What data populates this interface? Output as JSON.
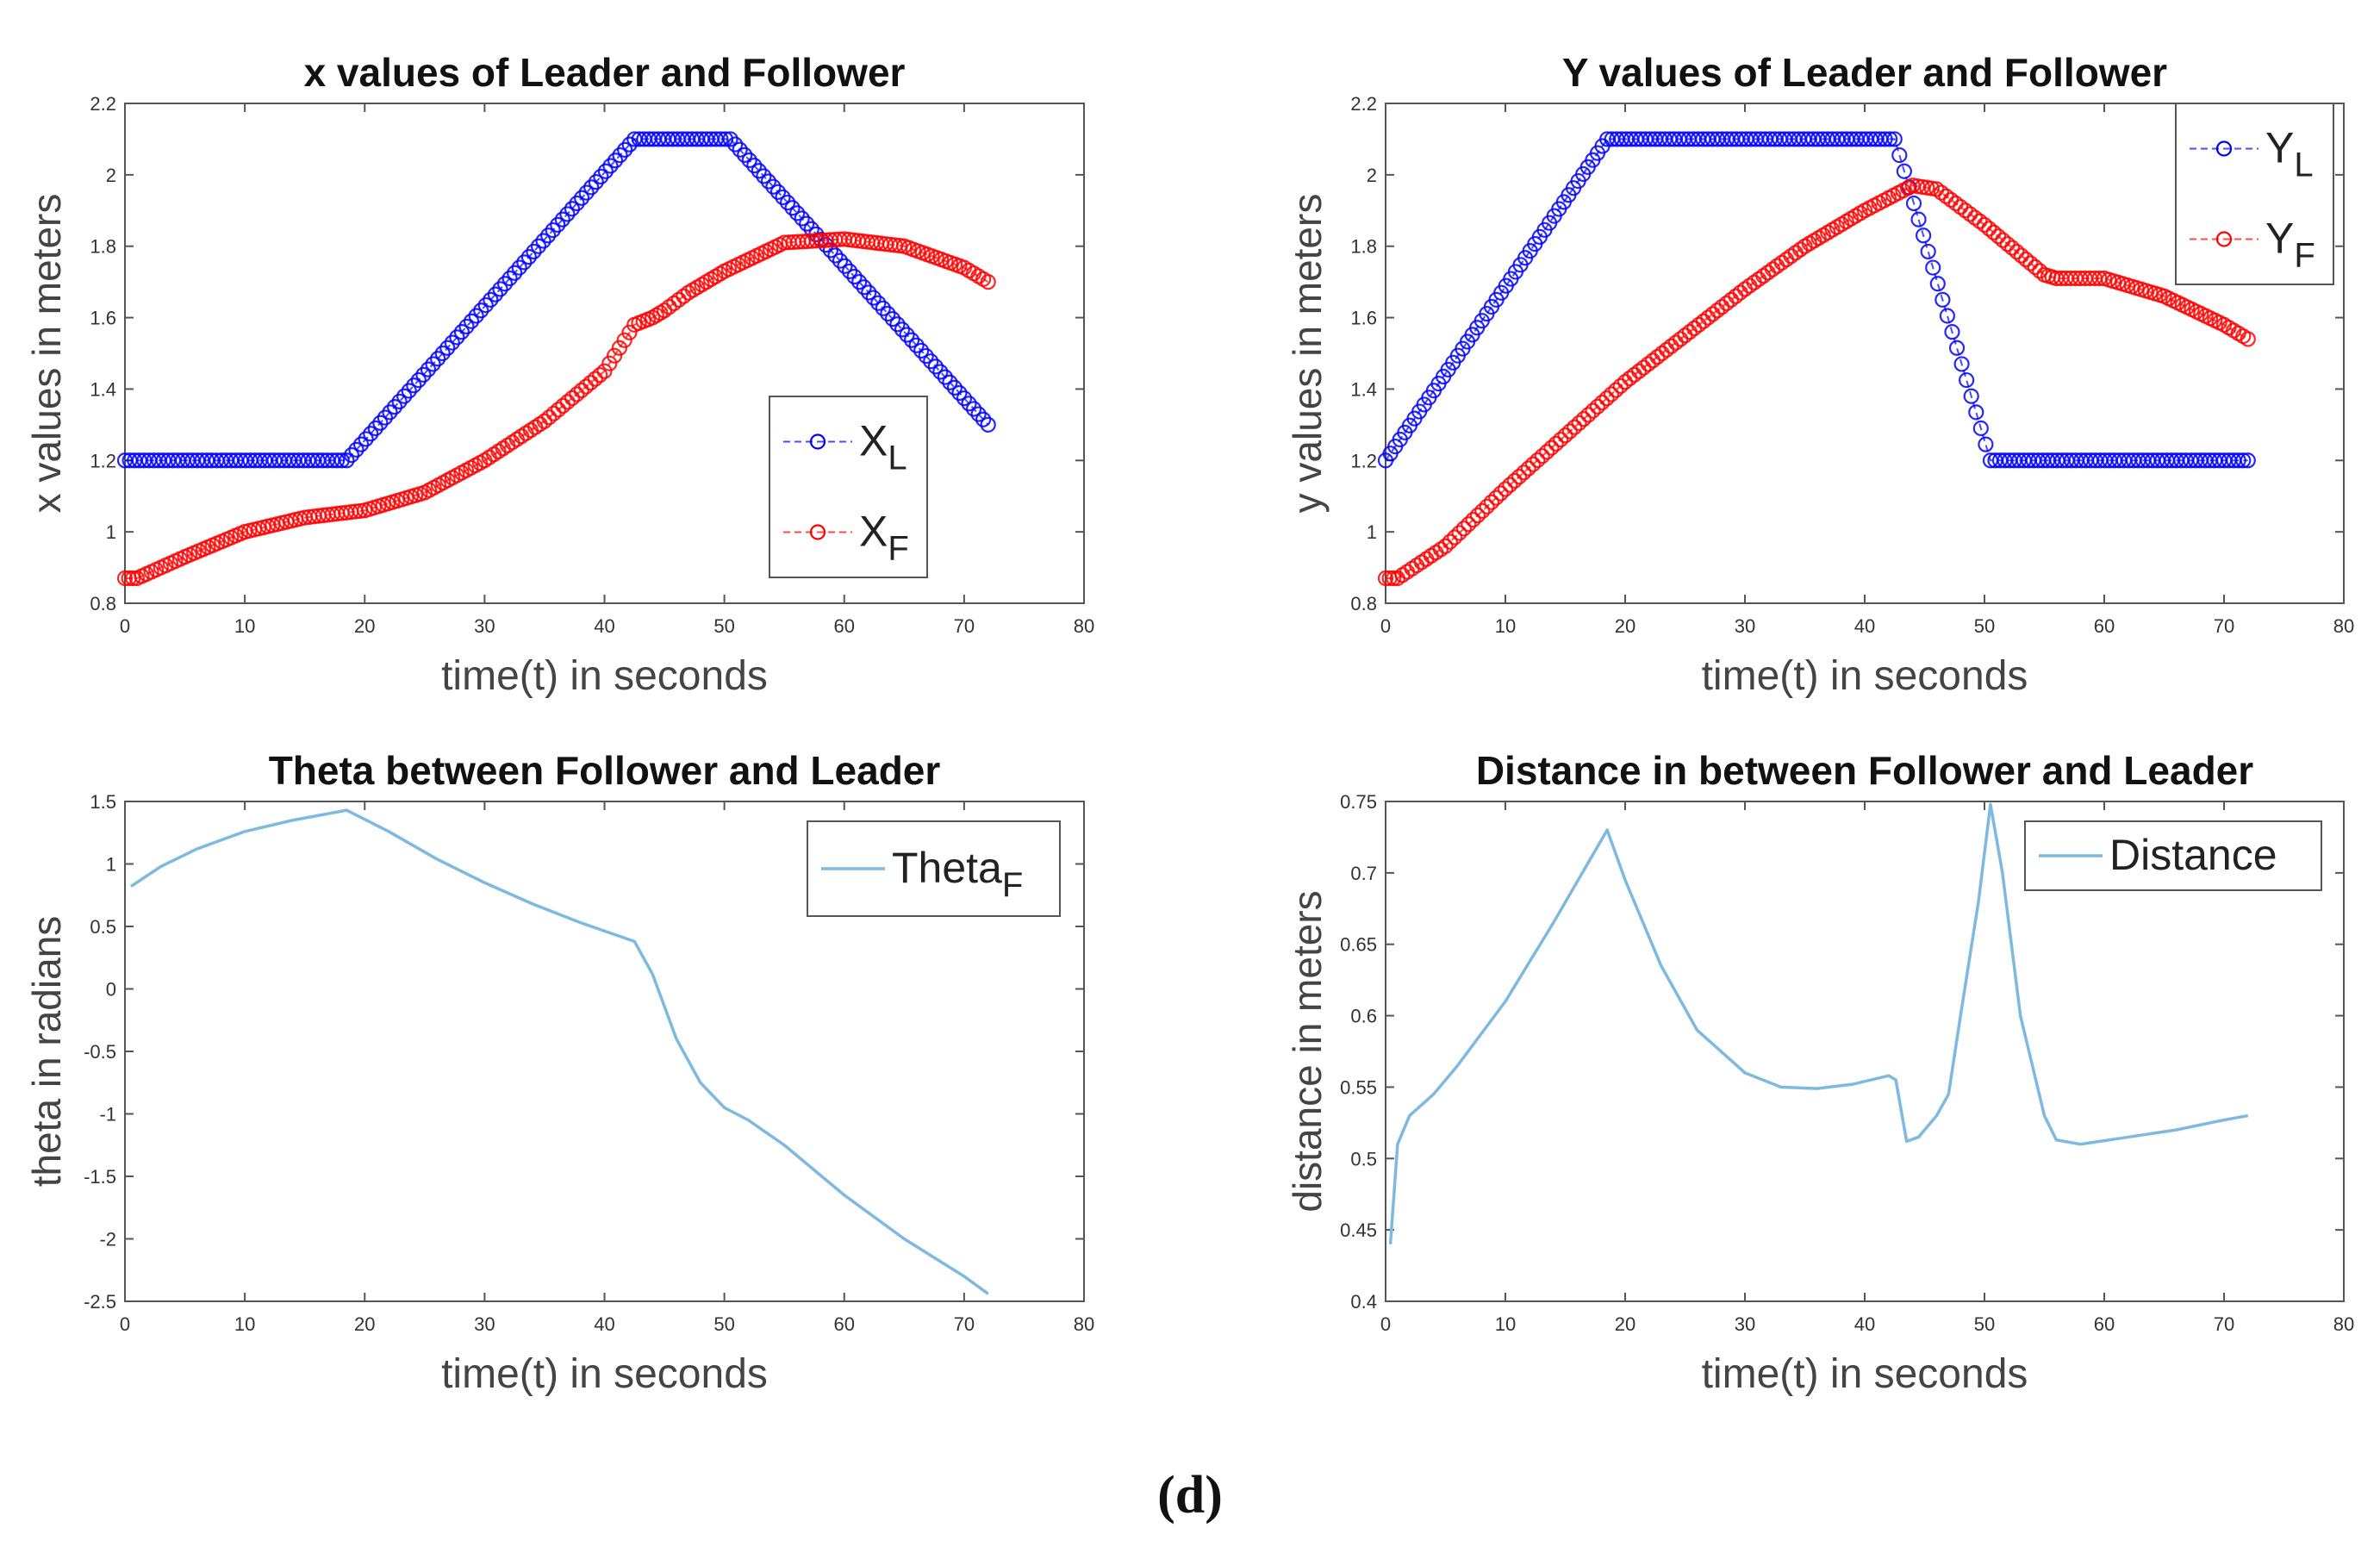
{
  "caption": "(d)",
  "chart_data": [
    {
      "id": "x",
      "type": "line",
      "title": "x values of Leader and Follower",
      "xlabel": "time(t) in seconds",
      "ylabel": "x values in meters",
      "xlim": [
        0,
        80
      ],
      "ylim": [
        0.8,
        2.2
      ],
      "xticks": [
        0,
        10,
        20,
        30,
        40,
        50,
        60,
        70,
        80
      ],
      "yticks": [
        0.8,
        1,
        1.2,
        1.4,
        1.6,
        1.8,
        2,
        2.2
      ],
      "ytick_labels": [
        "0.8",
        "1",
        "1.2",
        "1.4",
        "1.6",
        "1.8",
        "2",
        "2.2"
      ],
      "legend_position": "lower-right",
      "series": [
        {
          "name": "X",
          "subscript": "L",
          "color": "#0000ff",
          "style": "dashed-circle",
          "points": [
            [
              0,
              1.2
            ],
            [
              18.5,
              1.2
            ],
            [
              42.5,
              2.1
            ],
            [
              50.5,
              2.1
            ],
            [
              72,
              1.3
            ]
          ]
        },
        {
          "name": "X",
          "subscript": "F",
          "color": "#ff0000",
          "style": "dashed-circle",
          "points": [
            [
              0,
              0.87
            ],
            [
              1,
              0.87
            ],
            [
              5,
              0.93
            ],
            [
              10,
              1.0
            ],
            [
              15,
              1.04
            ],
            [
              20,
              1.06
            ],
            [
              25,
              1.11
            ],
            [
              30,
              1.2
            ],
            [
              35,
              1.31
            ],
            [
              40,
              1.45
            ],
            [
              42.5,
              1.58
            ],
            [
              44,
              1.6
            ],
            [
              45,
              1.62
            ],
            [
              47,
              1.67
            ],
            [
              50,
              1.73
            ],
            [
              55,
              1.81
            ],
            [
              60,
              1.82
            ],
            [
              65,
              1.8
            ],
            [
              70,
              1.74
            ],
            [
              72,
              1.7
            ]
          ]
        }
      ]
    },
    {
      "id": "y",
      "type": "line",
      "title": "Y values of Leader and Follower",
      "xlabel": "time(t) in seconds",
      "ylabel": "y values in meters",
      "xlim": [
        0,
        80
      ],
      "ylim": [
        0.8,
        2.2
      ],
      "xticks": [
        0,
        10,
        20,
        30,
        40,
        50,
        60,
        70,
        80
      ],
      "yticks": [
        0.8,
        1,
        1.2,
        1.4,
        1.6,
        1.8,
        2,
        2.2
      ],
      "ytick_labels": [
        "0.8",
        "1",
        "1.2",
        "1.4",
        "1.6",
        "1.8",
        "2",
        "2.2"
      ],
      "legend_position": "top-right",
      "series": [
        {
          "name": "Y",
          "subscript": "L",
          "color": "#0000ff",
          "style": "dashed-circle",
          "points": [
            [
              0,
              1.2
            ],
            [
              18.5,
              2.1
            ],
            [
              42.5,
              2.1
            ],
            [
              50.5,
              1.2
            ],
            [
              72,
              1.2
            ]
          ]
        },
        {
          "name": "Y",
          "subscript": "F",
          "color": "#ff0000",
          "style": "dashed-circle",
          "points": [
            [
              0,
              0.87
            ],
            [
              1,
              0.87
            ],
            [
              5,
              0.96
            ],
            [
              10,
              1.12
            ],
            [
              15,
              1.27
            ],
            [
              20,
              1.42
            ],
            [
              25,
              1.55
            ],
            [
              30,
              1.68
            ],
            [
              35,
              1.8
            ],
            [
              40,
              1.9
            ],
            [
              44,
              1.97
            ],
            [
              46,
              1.96
            ],
            [
              50,
              1.86
            ],
            [
              55,
              1.72
            ],
            [
              56,
              1.71
            ],
            [
              60,
              1.71
            ],
            [
              65,
              1.66
            ],
            [
              70,
              1.58
            ],
            [
              72,
              1.54
            ]
          ]
        }
      ]
    },
    {
      "id": "theta",
      "type": "line",
      "title": "Theta between Follower and Leader",
      "xlabel": "time(t) in seconds",
      "ylabel": "theta in radians",
      "xlim": [
        0,
        80
      ],
      "ylim": [
        -2.5,
        1.5
      ],
      "xticks": [
        0,
        10,
        20,
        30,
        40,
        50,
        60,
        70,
        80
      ],
      "yticks": [
        -2.5,
        -2,
        -1.5,
        -1,
        -0.5,
        0,
        0.5,
        1,
        1.5
      ],
      "ytick_labels": [
        "-2.5",
        "-2",
        "-1.5",
        "-1",
        "-0.5",
        "0",
        "0.5",
        "1",
        "1.5"
      ],
      "legend_position": "top-right",
      "series": [
        {
          "name": "Theta",
          "subscript": "F",
          "color": "#7db9e0",
          "style": "solid",
          "points": [
            [
              0.5,
              0.82
            ],
            [
              3,
              0.98
            ],
            [
              6,
              1.12
            ],
            [
              10,
              1.26
            ],
            [
              14,
              1.35
            ],
            [
              18.5,
              1.43
            ],
            [
              22,
              1.26
            ],
            [
              26,
              1.04
            ],
            [
              30,
              0.85
            ],
            [
              34,
              0.68
            ],
            [
              38,
              0.53
            ],
            [
              42.5,
              0.38
            ],
            [
              44,
              0.12
            ],
            [
              46,
              -0.4
            ],
            [
              48,
              -0.75
            ],
            [
              50,
              -0.95
            ],
            [
              52,
              -1.05
            ],
            [
              55,
              -1.25
            ],
            [
              60,
              -1.65
            ],
            [
              65,
              -2.0
            ],
            [
              70,
              -2.3
            ],
            [
              72,
              -2.44
            ]
          ]
        }
      ]
    },
    {
      "id": "dist",
      "type": "line",
      "title": "Distance in between Follower and Leader",
      "xlabel": "time(t) in seconds",
      "ylabel": "distance in meters",
      "xlim": [
        0,
        80
      ],
      "ylim": [
        0.4,
        0.75
      ],
      "xticks": [
        0,
        10,
        20,
        30,
        40,
        50,
        60,
        70,
        80
      ],
      "yticks": [
        0.4,
        0.45,
        0.5,
        0.55,
        0.6,
        0.65,
        0.7,
        0.75
      ],
      "ytick_labels": [
        "0.4",
        "0.45",
        "0.5",
        "0.55",
        "0.6",
        "0.65",
        "0.7",
        "0.75"
      ],
      "legend_position": "top-right",
      "series": [
        {
          "name": "Distance",
          "subscript": "",
          "color": "#7db9e0",
          "style": "solid",
          "points": [
            [
              0.4,
              0.44
            ],
            [
              1,
              0.51
            ],
            [
              2,
              0.53
            ],
            [
              4,
              0.545
            ],
            [
              6,
              0.565
            ],
            [
              10,
              0.61
            ],
            [
              14,
              0.665
            ],
            [
              18.5,
              0.73
            ],
            [
              20,
              0.695
            ],
            [
              23,
              0.635
            ],
            [
              26,
              0.59
            ],
            [
              30,
              0.56
            ],
            [
              33,
              0.55
            ],
            [
              36,
              0.549
            ],
            [
              39,
              0.552
            ],
            [
              42,
              0.558
            ],
            [
              42.6,
              0.555
            ],
            [
              43.5,
              0.512
            ],
            [
              44.5,
              0.515
            ],
            [
              46,
              0.53
            ],
            [
              47,
              0.545
            ],
            [
              48,
              0.6
            ],
            [
              49.5,
              0.68
            ],
            [
              50.5,
              0.748
            ],
            [
              51.5,
              0.7
            ],
            [
              53,
              0.6
            ],
            [
              55,
              0.53
            ],
            [
              56,
              0.513
            ],
            [
              58,
              0.51
            ],
            [
              62,
              0.515
            ],
            [
              66,
              0.52
            ],
            [
              70,
              0.527
            ],
            [
              72,
              0.53
            ]
          ]
        }
      ]
    }
  ]
}
